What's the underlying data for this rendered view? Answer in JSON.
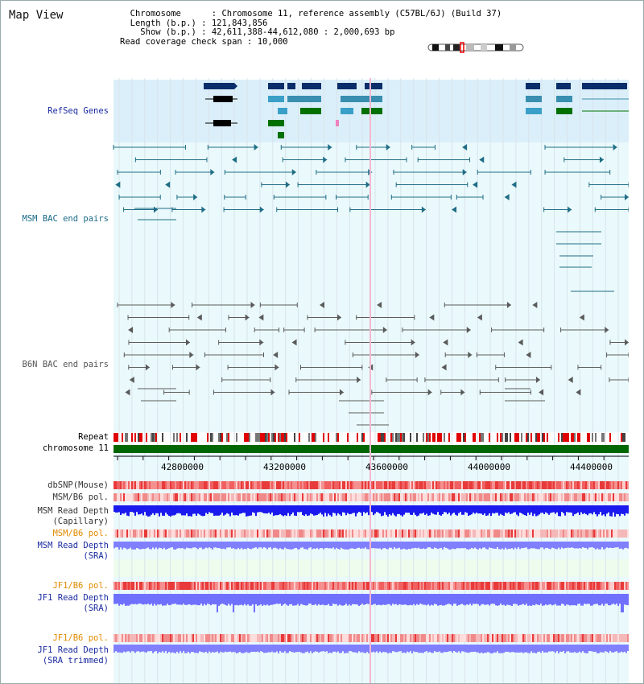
{
  "view_title": "Map View",
  "info": {
    "chromosome_label": "Chromosome",
    "chromosome_value": "Chromosome 11, reference assembly (C57BL/6J) (Build 37)",
    "length_label": "Length (b.p.)",
    "length_value": "121,843,856",
    "show_label": "Show (b.p.)",
    "show_value": "42,611,388-44,612,080 : 2,000,693 bp",
    "coverage_label": "Read coverage check span",
    "coverage_value": "10,000"
  },
  "tracks": {
    "refseq": "RefSeq Genes",
    "msm_bac": "MSM BAC end pairs",
    "b6n_bac": "B6N BAC end pairs",
    "repeat": "Repeat",
    "chromosome": "chromosome 11",
    "dbsnp": "dbSNP(Mouse)",
    "msm_b6_pol_1": "MSM/B6 pol.",
    "msm_depth_cap_1": "MSM Read Depth",
    "msm_depth_cap_2": "(Capillary)",
    "msm_b6_pol_2": "MSM/B6 pol.",
    "msm_depth_sra_1": "MSM Read Depth",
    "msm_depth_sra_2": "(SRA)",
    "jf1_b6_pol_1": "JF1/B6 pol.",
    "jf1_depth_sra_1": "JF1 Read Depth",
    "jf1_depth_sra_2": "(SRA)",
    "jf1_b6_pol_2": "JF1/B6 pol.",
    "jf1_depth_trim_1": "JF1 Read Depth",
    "jf1_depth_trim_2": "(SRA trimmed)"
  },
  "axis": {
    "ticks": [
      "42800000",
      "43200000",
      "43600000",
      "44000000",
      "44400000"
    ]
  },
  "colors": {
    "refseq_bg": "#dbeffa",
    "main_bg": "#eaf9fb",
    "msm_bac": "#1f6d86",
    "b6n_bac": "#5a5a5a",
    "label_blue": "#1a2aa0",
    "label_orange": "#e08a00",
    "label_teal": "#1a6a88",
    "chromosome_green": "#006600",
    "pol_red": "#e83a3a",
    "depth_blue": "#1a1aee",
    "depth_light": "#8080ff"
  }
}
